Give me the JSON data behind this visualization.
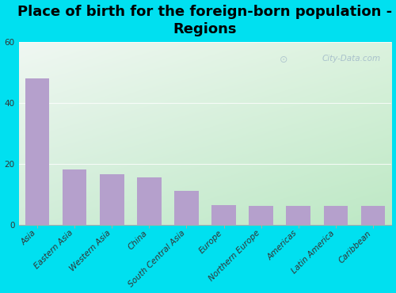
{
  "title": "Place of birth for the foreign-born population -\nRegions",
  "categories": [
    "Asia",
    "Eastern Asia",
    "Western Asia",
    "China",
    "South Central Asia",
    "Europe",
    "Northern Europe",
    "Americas",
    "Latin America",
    "Caribbean"
  ],
  "values": [
    48,
    18,
    16.5,
    15.5,
    11,
    6.5,
    6.2,
    6.2,
    6.2,
    6.2
  ],
  "bar_color": "#b5a0cc",
  "background_outer": "#00e0f0",
  "ylim": [
    0,
    60
  ],
  "yticks": [
    0,
    20,
    40,
    60
  ],
  "title_fontsize": 13,
  "tick_fontsize": 7.5,
  "watermark": "City-Data.com",
  "grad_top_left": "#e8f8f0",
  "grad_bottom_right": "#c8eedc"
}
